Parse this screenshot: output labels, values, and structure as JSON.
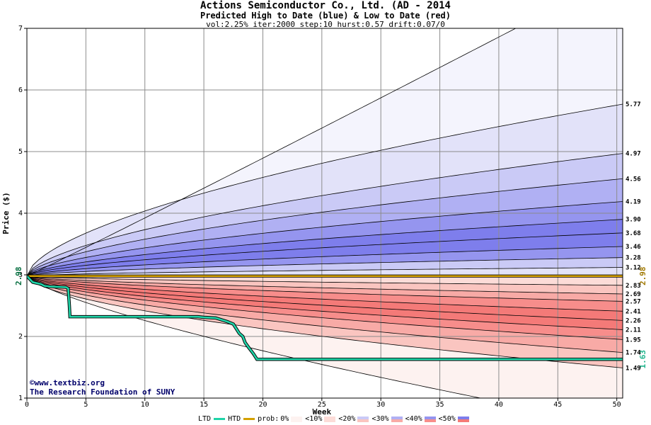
{
  "header": {
    "title": "Actions Semiconductor Co., Ltd. (AD - 2014",
    "subtitle": "Predicted High to Date (blue) &  Low to Date (red)",
    "params": "vol:2.25% iter:2000 step:10 hurst:0.57 drift:0.07/0"
  },
  "credits": {
    "site": "www.textbiz.org",
    "org": "The Research Foundation of SUNY"
  },
  "legend": {
    "ltd": "LTD",
    "htd": "HTD",
    "prob": "prob:",
    "p0": "0%",
    "p10": "<10%",
    "p20": "<20%",
    "p30": "<30%",
    "p40": "<40%",
    "p50": "<50%"
  },
  "chart_data": {
    "type": "line",
    "title": "Actions Semiconductor Co., Ltd. (AD - 2014",
    "subtitle": "Predicted High to Date (blue) &  Low to Date (red)",
    "xlabel": "Week",
    "ylabel": "Price ($)",
    "xlim": [
      0,
      50.5
    ],
    "ylim": [
      1,
      7
    ],
    "xticks": [
      0,
      5,
      10,
      15,
      20,
      25,
      30,
      35,
      40,
      45,
      50
    ],
    "yticks": [
      1,
      2,
      3,
      4,
      5,
      6,
      7
    ],
    "start_price": 2.98,
    "current_price_label": "2.98",
    "last_ltd_label": "1.63",
    "colors": {
      "high_band_0": "#f4f4fd",
      "high_band_10": "#e2e2f9",
      "high_band_20": "#cacaf6",
      "high_band_30": "#b0b0f3",
      "high_band_40": "#9595ef",
      "high_band_50": "#7e7eec",
      "low_band_0": "#fdf2f0",
      "low_band_10": "#fcdcd8",
      "low_band_20": "#fac5c0",
      "low_band_30": "#f8aaa6",
      "low_band_40": "#f78d8b",
      "low_band_50": "#f47a78",
      "htd_line": "#1fd4a8",
      "start_line": "#d4a000",
      "grid": "#8c8c8c"
    },
    "high_quantiles": [
      {
        "label": "",
        "end": 7.9,
        "k": 1.02
      },
      {
        "label": "5.77",
        "end": 5.77
      },
      {
        "label": "4.97",
        "end": 4.97
      },
      {
        "label": "4.56",
        "end": 4.56
      },
      {
        "label": "4.19",
        "end": 4.19
      },
      {
        "label": "3.90",
        "end": 3.9
      },
      {
        "label": "3.68",
        "end": 3.68
      },
      {
        "label": "3.46",
        "end": 3.46
      },
      {
        "label": "3.28",
        "end": 3.28
      },
      {
        "label": "3.12",
        "end": 3.12
      }
    ],
    "low_quantiles": [
      {
        "label": "2.83",
        "end": 2.83
      },
      {
        "label": "2.69",
        "end": 2.69
      },
      {
        "label": "2.57",
        "end": 2.57
      },
      {
        "label": "2.41",
        "end": 2.41
      },
      {
        "label": "2.26",
        "end": 2.26
      },
      {
        "label": "2.11",
        "end": 2.11
      },
      {
        "label": "1.95",
        "end": 1.95
      },
      {
        "label": "1.74",
        "end": 1.74
      },
      {
        "label": "1.49",
        "end": 1.49
      },
      {
        "label": "",
        "end": 0.55,
        "k": 0.75
      }
    ],
    "ltd_series": {
      "name": "LTD",
      "x": [
        0,
        0.5,
        1.2,
        1.5,
        2.0,
        3.3,
        3.5,
        3.6,
        3.65,
        4.0,
        14.5,
        15.0,
        16.0,
        17.0,
        17.5,
        18.0,
        18.3,
        18.5,
        18.8,
        19.2,
        19.5,
        50.5
      ],
      "y": [
        2.98,
        2.88,
        2.85,
        2.82,
        2.81,
        2.8,
        2.78,
        2.5,
        2.32,
        2.32,
        2.32,
        2.31,
        2.3,
        2.24,
        2.2,
        2.05,
        2.0,
        1.9,
        1.82,
        1.72,
        1.63,
        1.63
      ]
    }
  }
}
